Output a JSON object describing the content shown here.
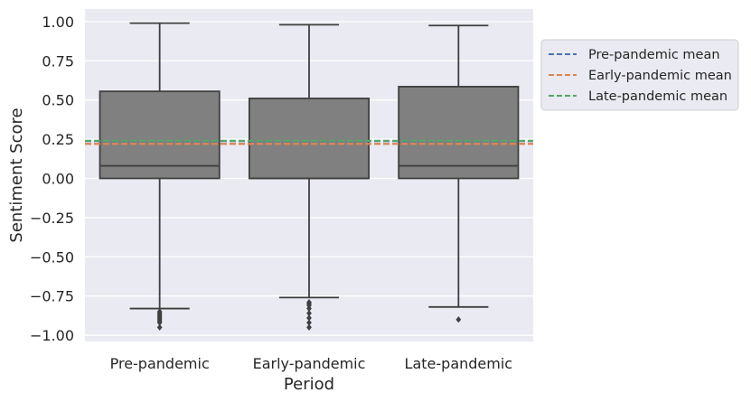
{
  "chart_data": {
    "type": "box",
    "xlabel": "Period",
    "ylabel": "Sentiment Score",
    "ylim": [
      -1.04,
      1.08
    ],
    "yticks": [
      {
        "value": 1.0,
        "label": "1.00"
      },
      {
        "value": 0.75,
        "label": "0.75"
      },
      {
        "value": 0.5,
        "label": "0.50"
      },
      {
        "value": 0.25,
        "label": "0.25"
      },
      {
        "value": 0.0,
        "label": "0.00"
      },
      {
        "value": -0.25,
        "label": "−0.25"
      },
      {
        "value": -0.5,
        "label": "−0.50"
      },
      {
        "value": -0.75,
        "label": "−0.75"
      },
      {
        "value": -1.0,
        "label": "−1.00"
      }
    ],
    "grid": true,
    "box_color": "#808080",
    "edge_color": "#3f3f3f",
    "background": "#eaeaf2",
    "categories": [
      "Pre-pandemic",
      "Early-pandemic",
      "Late-pandemic"
    ],
    "boxes": [
      {
        "category": "Pre-pandemic",
        "whisker_low": -0.83,
        "q1": 0.0,
        "median": 0.08,
        "q3": 0.555,
        "whisker_high": 0.99,
        "outliers": [
          -0.85,
          -0.86,
          -0.87,
          -0.88,
          -0.89,
          -0.9,
          -0.91,
          -0.92,
          -0.95
        ]
      },
      {
        "category": "Early-pandemic",
        "whisker_low": -0.76,
        "q1": 0.0,
        "median": 0.0,
        "q3": 0.51,
        "whisker_high": 0.98,
        "outliers": [
          -0.79,
          -0.8,
          -0.81,
          -0.83,
          -0.86,
          -0.89,
          -0.92,
          -0.95
        ]
      },
      {
        "category": "Late-pandemic",
        "whisker_low": -0.82,
        "q1": 0.0,
        "median": 0.08,
        "q3": 0.585,
        "whisker_high": 0.975,
        "outliers": [
          -0.9
        ]
      }
    ],
    "mean_lines": [
      {
        "name": "Pre-pandemic mean",
        "value": 0.238,
        "color": "#4c72b0"
      },
      {
        "name": "Early-pandemic mean",
        "value": 0.22,
        "color": "#dd8452"
      },
      {
        "name": "Late-pandemic mean",
        "value": 0.24,
        "color": "#55a868"
      }
    ],
    "legend": {
      "placement": "outside-right-top"
    }
  }
}
